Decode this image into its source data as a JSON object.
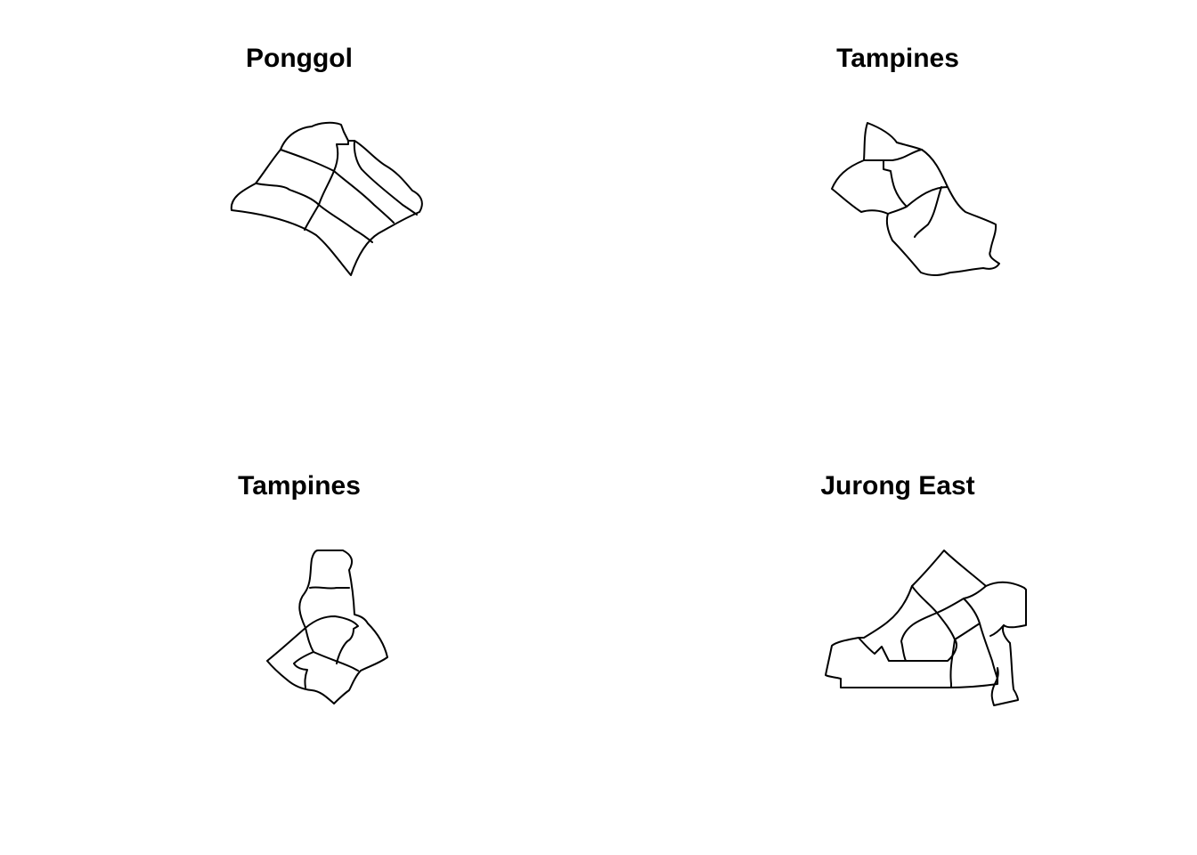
{
  "figure": {
    "panels": [
      {
        "title": "Ponggol"
      },
      {
        "title": "Tampines"
      },
      {
        "title": "Tampines"
      },
      {
        "title": "Jurong East"
      }
    ],
    "outline_color": "#000000",
    "background_color": "#ffffff"
  }
}
